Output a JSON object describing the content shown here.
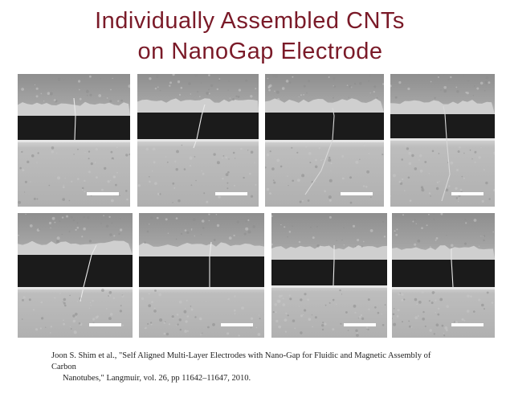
{
  "title": {
    "line1": "Individually Assembled CNTs",
    "line2": "on NanoGap Electrode"
  },
  "colors": {
    "title": "#7a1a28",
    "citation_text": "#222222",
    "scale_bar": "#ffffff"
  },
  "micrographs": {
    "rows": 2,
    "per_row": 4,
    "content": "SEM images of a single carbon nanotube bridging a nano-gap between two electrodes, each with a white scale bar"
  },
  "citation": {
    "line1": "Joon S. Shim et al., \"Self Aligned Multi-Layer Electrodes with Nano-Gap for Fluidic and Magnetic Assembly of Carbon",
    "line2": "Nanotubes,\" Langmuir, vol. 26, pp 11642–11647, 2010."
  }
}
